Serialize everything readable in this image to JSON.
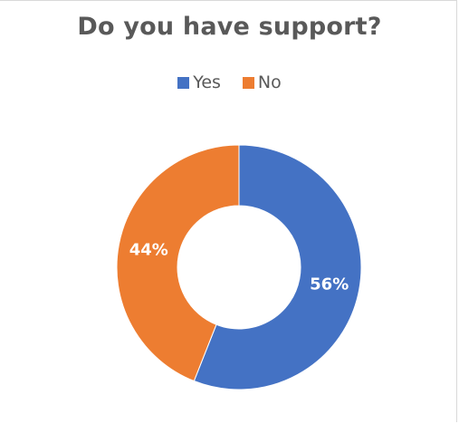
{
  "chart_data": {
    "type": "pie",
    "variant": "donut",
    "title": "Do you have support?",
    "legend_position": "top",
    "slices": [
      {
        "name": "Yes",
        "value": 56,
        "label": "56%",
        "color": "#4472c4"
      },
      {
        "name": "No",
        "value": 44,
        "label": "44%",
        "color": "#ed7d31"
      }
    ]
  }
}
